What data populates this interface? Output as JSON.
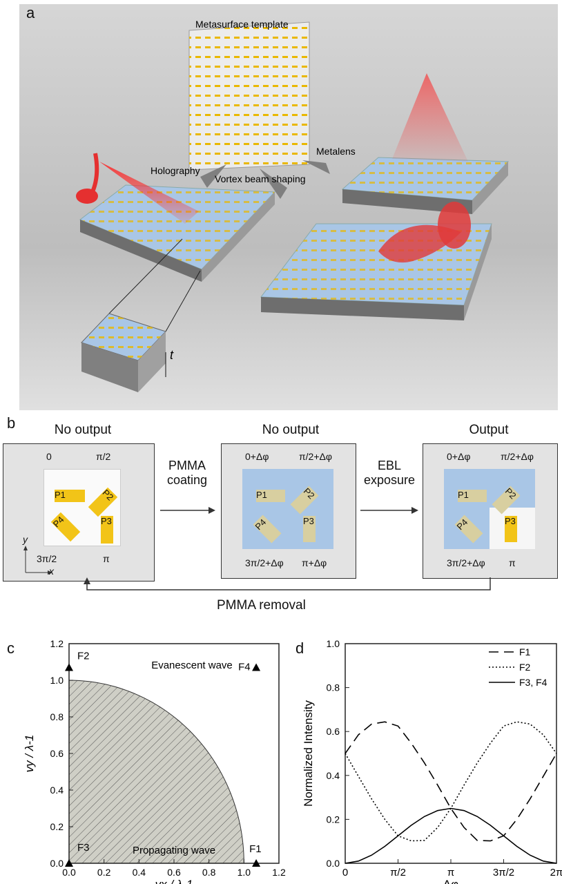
{
  "panel_a": {
    "letter": "a",
    "template_label": "Metasurface template",
    "holography_label": "Holography",
    "vortex_label": "Vortex beam shaping",
    "metalens_label": "Metalens",
    "thickness_label": "t"
  },
  "panel_b": {
    "letter": "b",
    "states": [
      {
        "title": "No output",
        "phases": [
          "0",
          "π/2",
          "3π/2",
          "π"
        ]
      },
      {
        "title": "No output",
        "phases": [
          "0+Δφ",
          "π/2+Δφ",
          "3π/2+Δφ",
          "π+Δφ"
        ]
      },
      {
        "title": "Output",
        "phases": [
          "0+Δφ",
          "π/2+Δφ",
          "3π/2+Δφ",
          "π"
        ]
      }
    ],
    "pixels": [
      "P1",
      "P2",
      "P3",
      "P4"
    ],
    "step1": [
      "PMMA",
      "coating"
    ],
    "step2": [
      "EBL",
      "exposure"
    ],
    "loop_label": "PMMA removal",
    "axis_y": "y",
    "axis_x": "x",
    "colors": {
      "gold": "#f2c418",
      "pmma": "#a9c6e6"
    }
  },
  "panel_c": {
    "letter": "c",
    "chart_data": {
      "type": "scatter",
      "xlabel": "vx / λ-1",
      "ylabel": "vy / λ-1",
      "xlim": [
        0,
        1.2
      ],
      "ylim": [
        0,
        1.2
      ],
      "xticks": [
        "0.0",
        "0.2",
        "0.4",
        "0.6",
        "0.8",
        "1.0",
        "1.2"
      ],
      "yticks": [
        "0.0",
        "0.2",
        "0.4",
        "0.6",
        "0.8",
        "1.0",
        "1.2"
      ],
      "region_boundary": "unit circle x²+y²=1",
      "region_labels": [
        "Evanescent wave",
        "Propagating wave"
      ],
      "points": [
        {
          "label": "F1",
          "x": 1.07,
          "y": 0.0
        },
        {
          "label": "F2",
          "x": 0.0,
          "y": 1.07
        },
        {
          "label": "F3",
          "x": 0.0,
          "y": 0.0
        },
        {
          "label": "F4",
          "x": 1.07,
          "y": 1.07
        }
      ]
    }
  },
  "panel_d": {
    "letter": "d",
    "chart_data": {
      "type": "line",
      "xlabel": "Δφ",
      "ylabel": "Normalized Intensity",
      "xlim": [
        0,
        6.2832
      ],
      "ylim": [
        0,
        1.0
      ],
      "xticks": [
        "0",
        "π/2",
        "π",
        "3π/2",
        "2π"
      ],
      "yticks": [
        "0.0",
        "0.2",
        "0.4",
        "0.6",
        "0.8",
        "1.0"
      ],
      "legend_position": "top-right",
      "x": [
        0,
        0.3927,
        0.7854,
        1.1781,
        1.5708,
        1.9635,
        2.3562,
        2.7489,
        3.1416,
        3.5343,
        3.927,
        4.3197,
        4.7124,
        5.1051,
        5.4978,
        5.8905,
        6.2832
      ],
      "series": [
        {
          "name": "F1",
          "style": "dashed",
          "values": [
            0.5,
            0.585,
            0.634,
            0.644,
            0.625,
            0.547,
            0.457,
            0.356,
            0.25,
            0.163,
            0.104,
            0.102,
            0.125,
            0.2,
            0.293,
            0.396,
            0.5
          ]
        },
        {
          "name": "F2",
          "style": "dotted",
          "values": [
            0.5,
            0.396,
            0.293,
            0.2,
            0.125,
            0.102,
            0.104,
            0.163,
            0.25,
            0.356,
            0.457,
            0.547,
            0.625,
            0.644,
            0.634,
            0.585,
            0.5
          ]
        },
        {
          "name": "F3, F4",
          "style": "solid",
          "values": [
            0.0,
            0.01,
            0.037,
            0.077,
            0.125,
            0.173,
            0.213,
            0.24,
            0.25,
            0.24,
            0.213,
            0.173,
            0.125,
            0.077,
            0.037,
            0.01,
            0.0
          ]
        }
      ]
    }
  }
}
